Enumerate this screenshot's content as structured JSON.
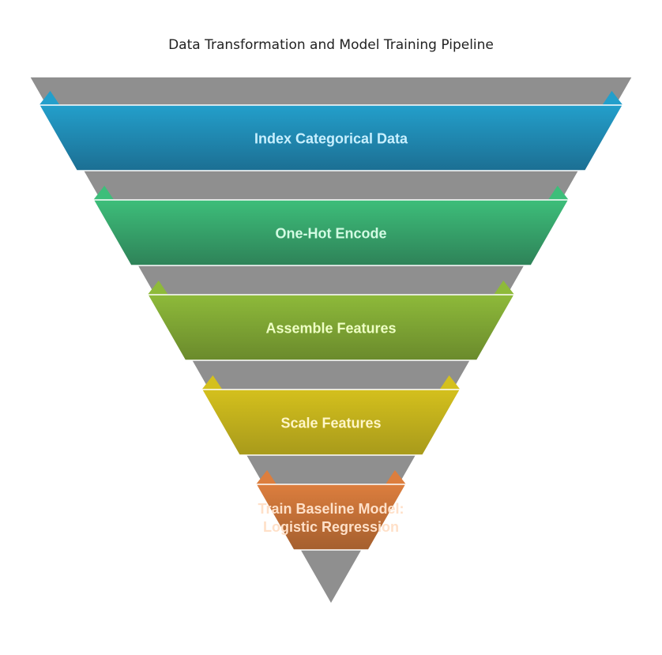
{
  "title": "Data Transformation and Model Training Pipeline",
  "stages": [
    {
      "label_lines": [
        "Index Categorical Data"
      ],
      "color": "#239FCB",
      "dark": "#1C6F93",
      "text_color": "#C8F0FF"
    },
    {
      "label_lines": [
        "One-Hot Encode"
      ],
      "color": "#3DBE7A",
      "dark": "#2E8258",
      "text_color": "#D2FBE3"
    },
    {
      "label_lines": [
        "Assemble Features"
      ],
      "color": "#8EBA3A",
      "dark": "#6A8A2C",
      "text_color": "#EEFFC4"
    },
    {
      "label_lines": [
        "Scale Features"
      ],
      "color": "#D4C01D",
      "dark": "#A89A1B",
      "text_color": "#FFF6C8"
    },
    {
      "label_lines": [
        "Train Baseline Model:",
        "Logistic Regression"
      ],
      "color": "#DC7E3E",
      "dark": "#A55F2E",
      "text_color": "#FFE0C8"
    }
  ],
  "funnel_color": "#8F8F8F"
}
